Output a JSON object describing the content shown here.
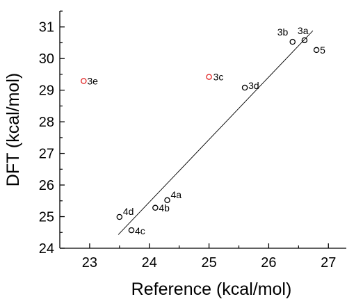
{
  "chart_data": {
    "type": "scatter",
    "xlabel": "Reference (kcal/mol)",
    "ylabel": "DFT (kcal/mol)",
    "xlim": [
      22.5,
      27.3
    ],
    "ylim": [
      24.0,
      31.5
    ],
    "x_ticks": [
      23,
      24,
      25,
      26,
      27
    ],
    "y_ticks": [
      24,
      25,
      26,
      27,
      28,
      29,
      30,
      31
    ],
    "grid": false,
    "points": [
      {
        "label": "3a",
        "x": 26.6,
        "y": 30.58,
        "color": "#000000"
      },
      {
        "label": "3b",
        "x": 26.4,
        "y": 30.53,
        "color": "#000000"
      },
      {
        "label": "5",
        "x": 26.8,
        "y": 30.27,
        "color": "#000000"
      },
      {
        "label": "3c",
        "x": 25.0,
        "y": 29.42,
        "color": "#e02020"
      },
      {
        "label": "3d",
        "x": 25.6,
        "y": 29.08,
        "color": "#000000"
      },
      {
        "label": "3e",
        "x": 22.9,
        "y": 29.29,
        "color": "#e02020"
      },
      {
        "label": "4a",
        "x": 24.3,
        "y": 25.52,
        "color": "#000000"
      },
      {
        "label": "4b",
        "x": 24.1,
        "y": 25.28,
        "color": "#000000"
      },
      {
        "label": "4d",
        "x": 23.5,
        "y": 24.99,
        "color": "#000000"
      },
      {
        "label": "4c",
        "x": 23.7,
        "y": 24.57,
        "color": "#000000"
      }
    ],
    "fit_line": {
      "x": [
        23.48,
        26.74
      ],
      "y": [
        24.43,
        30.88
      ]
    }
  }
}
